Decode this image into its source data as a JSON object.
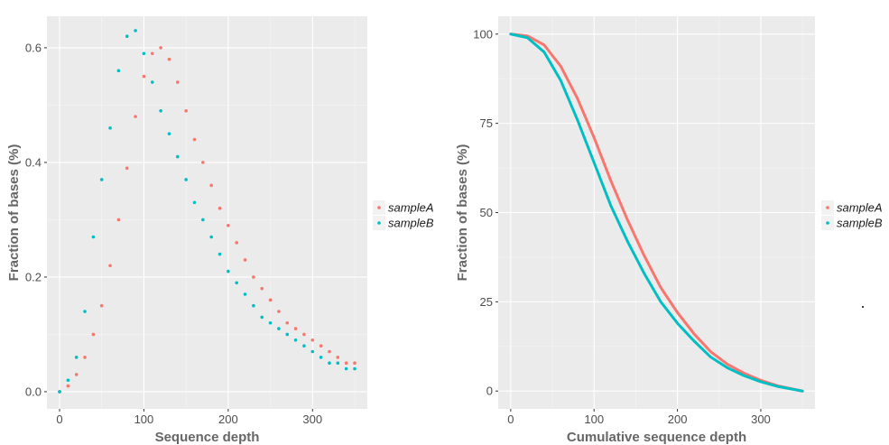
{
  "chart_data": [
    {
      "type": "scatter",
      "xlabel": "Sequence depth",
      "ylabel": "Fraction of bases (%)",
      "xlim": [
        -15,
        365
      ],
      "ylim": [
        -0.03,
        0.655
      ],
      "xticks": [
        0,
        100,
        200,
        300
      ],
      "xtick_labels": [
        "0",
        "100",
        "200",
        "300"
      ],
      "yticks": [
        0.0,
        0.2,
        0.4,
        0.6
      ],
      "ytick_labels": [
        "0.0",
        "0.2",
        "0.4",
        "0.6"
      ],
      "grid": true,
      "legend_position": "right",
      "series": [
        {
          "name": "sampleA",
          "color": "#F8766D",
          "x": [
            0,
            10,
            20,
            30,
            40,
            50,
            60,
            70,
            80,
            90,
            100,
            110,
            120,
            130,
            140,
            150,
            160,
            170,
            180,
            190,
            200,
            210,
            220,
            230,
            240,
            250,
            260,
            270,
            280,
            290,
            300,
            310,
            320,
            330,
            340,
            350
          ],
          "y": [
            0.0,
            0.01,
            0.03,
            0.06,
            0.1,
            0.15,
            0.22,
            0.3,
            0.39,
            0.48,
            0.55,
            0.59,
            0.6,
            0.58,
            0.54,
            0.49,
            0.44,
            0.4,
            0.36,
            0.32,
            0.29,
            0.26,
            0.23,
            0.2,
            0.18,
            0.16,
            0.14,
            0.12,
            0.11,
            0.1,
            0.09,
            0.08,
            0.07,
            0.06,
            0.05,
            0.05
          ]
        },
        {
          "name": "sampleB",
          "color": "#00BFC4",
          "x": [
            0,
            10,
            20,
            30,
            40,
            50,
            60,
            70,
            80,
            90,
            100,
            110,
            120,
            130,
            140,
            150,
            160,
            170,
            180,
            190,
            200,
            210,
            220,
            230,
            240,
            250,
            260,
            270,
            280,
            290,
            300,
            310,
            320,
            330,
            340,
            350
          ],
          "y": [
            0.0,
            0.02,
            0.06,
            0.14,
            0.27,
            0.37,
            0.46,
            0.56,
            0.62,
            0.63,
            0.59,
            0.54,
            0.49,
            0.45,
            0.41,
            0.37,
            0.33,
            0.3,
            0.27,
            0.24,
            0.21,
            0.19,
            0.17,
            0.15,
            0.13,
            0.12,
            0.11,
            0.1,
            0.09,
            0.08,
            0.07,
            0.06,
            0.05,
            0.05,
            0.04,
            0.04
          ]
        }
      ]
    },
    {
      "type": "line",
      "xlabel": "Cumulative sequence depth",
      "ylabel": "Fraction of bases (%)",
      "xlim": [
        -15,
        365
      ],
      "ylim": [
        -5,
        105
      ],
      "xticks": [
        0,
        100,
        200,
        300
      ],
      "xtick_labels": [
        "0",
        "100",
        "200",
        "300"
      ],
      "yticks": [
        0,
        25,
        50,
        75,
        100
      ],
      "ytick_labels": [
        "0",
        "25",
        "50",
        "75",
        "100"
      ],
      "grid": true,
      "legend_position": "right",
      "series": [
        {
          "name": "sampleA",
          "color": "#F8766D",
          "x": [
            0,
            20,
            40,
            60,
            80,
            100,
            120,
            140,
            160,
            180,
            200,
            220,
            240,
            260,
            280,
            300,
            320,
            350
          ],
          "y": [
            100,
            99.5,
            97,
            91,
            82,
            71,
            59,
            48,
            38,
            29,
            22,
            16,
            11,
            7.5,
            5,
            3,
            1.5,
            0
          ]
        },
        {
          "name": "sampleB",
          "color": "#00BFC4",
          "x": [
            0,
            20,
            40,
            60,
            80,
            100,
            120,
            140,
            160,
            180,
            200,
            220,
            240,
            260,
            280,
            300,
            320,
            350
          ],
          "y": [
            100,
            99,
            95,
            87,
            76,
            64,
            52,
            42,
            33,
            25,
            19,
            14,
            9.5,
            6.5,
            4.3,
            2.6,
            1.3,
            0
          ]
        }
      ]
    }
  ]
}
